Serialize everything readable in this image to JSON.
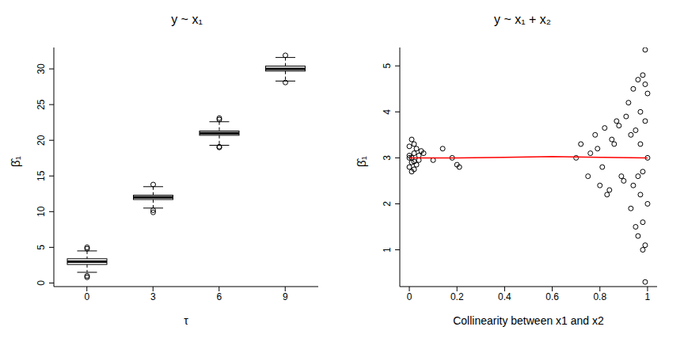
{
  "chart_data": [
    {
      "type": "boxplot",
      "title": "y ~ x₁",
      "x_label": "τ",
      "y_label": "β̂₁",
      "color": "#000000",
      "categories": [
        "0",
        "3",
        "6",
        "9"
      ],
      "min": [
        1.5,
        10.5,
        19.3,
        28.3
      ],
      "q1": [
        2.6,
        11.7,
        20.7,
        29.7
      ],
      "median": [
        3.0,
        12.0,
        21.0,
        30.0
      ],
      "q3": [
        3.4,
        12.3,
        21.3,
        30.4
      ],
      "max": [
        4.5,
        13.5,
        22.6,
        31.6
      ],
      "outliers": [
        [
          0.8,
          1.0,
          4.8,
          5.0
        ],
        [
          9.9,
          10.2,
          13.8
        ],
        [
          19.0,
          19.1,
          22.9,
          23.1
        ],
        [
          28.1,
          31.9
        ]
      ],
      "ylim": [
        -0.5,
        33
      ],
      "yticks": [
        0,
        5,
        10,
        15,
        20,
        25,
        30
      ]
    },
    {
      "type": "scatter",
      "title": "y ~ x₁ + x₂",
      "x_label": "Collinearity between x1 and x2",
      "y_label": "β̂₁",
      "series": [
        {
          "type": "scatter",
          "color": "#000000",
          "marker": "circle",
          "x": [
            0.0,
            0.0,
            0.01,
            0.01,
            0.02,
            0.02,
            0.03,
            0.0,
            0.01,
            0.04,
            0.02,
            0.05,
            0.03,
            0.01,
            0.0,
            0.06,
            0.02,
            0.04,
            0.1,
            0.14,
            0.18,
            0.21,
            0.2,
            0.7,
            0.72,
            0.75,
            0.78,
            0.8,
            0.82,
            0.84,
            0.86,
            0.88,
            0.9,
            0.76,
            0.81,
            0.85,
            0.89,
            0.79,
            0.83,
            0.87,
            0.91,
            0.92,
            0.93,
            0.94,
            0.95,
            0.95,
            0.96,
            0.96,
            0.97,
            0.97,
            0.98,
            0.98,
            0.98,
            0.99,
            0.99,
            0.99,
            1.0,
            1.0,
            0.97,
            0.96,
            0.99,
            0.94,
            0.98,
            0.99,
            0.93,
            1.0
          ],
          "values": [
            2.8,
            3.25,
            3.0,
            2.9,
            3.1,
            3.3,
            2.85,
            3.05,
            3.4,
            2.95,
            2.75,
            3.15,
            3.2,
            2.7,
            3.0,
            3.1,
            2.92,
            3.05,
            2.95,
            3.2,
            3.0,
            2.8,
            2.85,
            3.0,
            3.3,
            2.6,
            3.5,
            2.4,
            3.65,
            2.3,
            3.3,
            3.7,
            2.5,
            3.1,
            2.8,
            3.4,
            2.6,
            3.2,
            2.2,
            3.8,
            3.9,
            4.2,
            1.9,
            4.5,
            1.5,
            3.6,
            4.7,
            1.3,
            4.0,
            2.2,
            1.0,
            4.8,
            2.7,
            0.3,
            5.35,
            1.1,
            4.4,
            2.0,
            3.3,
            2.6,
            3.8,
            2.4,
            1.6,
            4.6,
            3.5,
            3.0
          ]
        },
        {
          "type": "line",
          "color": "#ff0000",
          "x": [
            0.0,
            0.2,
            0.4,
            0.6,
            0.8,
            1.0
          ],
          "values": [
            3.0,
            3.0,
            3.01,
            3.03,
            3.01,
            3.0
          ]
        }
      ],
      "xlim": [
        -0.04,
        1.04
      ],
      "xticks": [
        0,
        0.2,
        0.4,
        0.6,
        0.8,
        1.0
      ],
      "ylim": [
        0.2,
        5.4
      ],
      "yticks": [
        1,
        2,
        3,
        4,
        5
      ]
    }
  ]
}
